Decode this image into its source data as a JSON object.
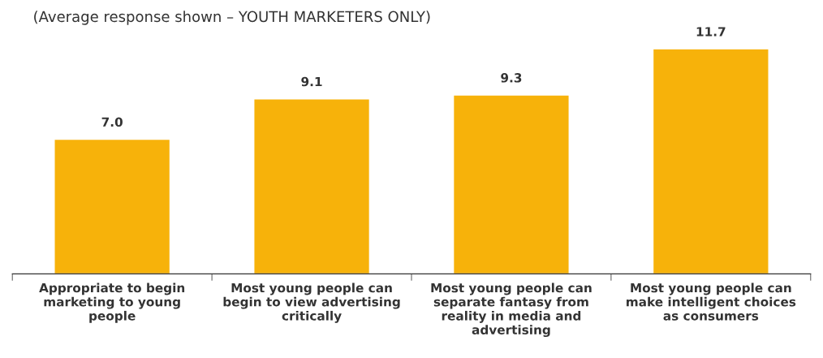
{
  "chart_data": {
    "type": "bar",
    "subtitle": "(Average response shown – YOUTH MARKETERS ONLY)",
    "categories": [
      "Appropriate to begin\nmarketing to young\npeople",
      "Most young people can\nbegin to view advertising\ncritically",
      "Most young people can\nseparate fantasy from\nreality in media and\nadvertising",
      "Most young people can\nmake intelligent choices\nas consumers"
    ],
    "values": [
      7.0,
      9.1,
      9.3,
      11.7
    ],
    "color": "#f7b20a",
    "value_labels": [
      "7.0",
      "9.1",
      "9.3",
      "11.7"
    ],
    "grid": false,
    "legend": false
  }
}
